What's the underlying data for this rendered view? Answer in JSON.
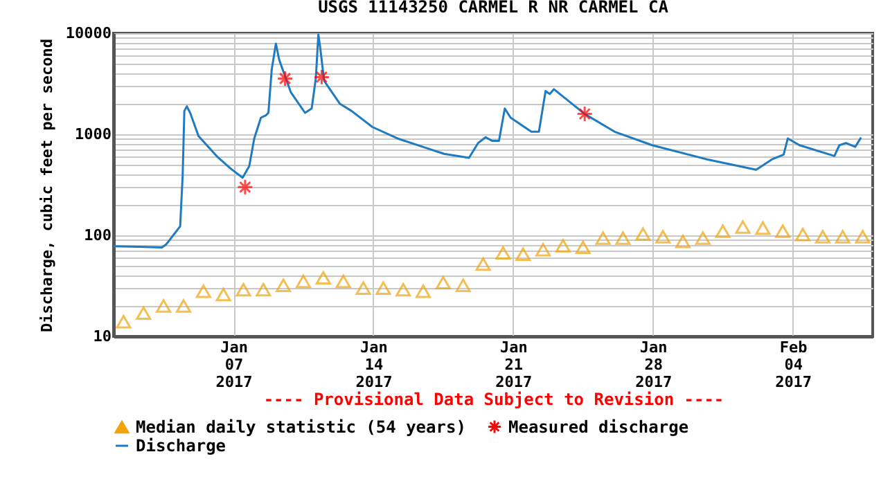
{
  "chart_data": {
    "type": "line",
    "title": "USGS 11143250 CARMEL R NR CARMEL CA",
    "ylabel": "Discharge, cubic feet per second",
    "annotations": [
      "---- Provisional Data Subject to Revision ----"
    ],
    "log": true,
    "grid": true,
    "legend": "bottom",
    "xlim": [
      "2017-01-01T00:00",
      "2017-02-08T00:00"
    ],
    "xticks": [
      {
        "value": "2017-01-07T00:00",
        "label": "Jan\n07\n2017"
      },
      {
        "value": "2017-01-14T00:00",
        "label": "Jan\n14\n2017"
      },
      {
        "value": "2017-01-21T00:00",
        "label": "Jan\n21\n2017"
      },
      {
        "value": "2017-01-28T00:00",
        "label": "Jan\n28\n2017"
      },
      {
        "value": "2017-02-04T00:00",
        "label": "Feb\n04\n2017"
      }
    ],
    "ylim": [
      10,
      10000
    ],
    "yticks": [
      10,
      {
        "value": 20,
        "label": null
      },
      {
        "value": 30,
        "label": null
      },
      {
        "value": 40,
        "label": null
      },
      {
        "value": 50,
        "label": null
      },
      {
        "value": 60,
        "label": null
      },
      {
        "value": 70,
        "label": null
      },
      {
        "value": 80,
        "label": null
      },
      {
        "value": 90,
        "label": null
      },
      100,
      {
        "value": 200,
        "label": null
      },
      {
        "value": 300,
        "label": null
      },
      {
        "value": 400,
        "label": null
      },
      {
        "value": 500,
        "label": null
      },
      {
        "value": 600,
        "label": null
      },
      {
        "value": 700,
        "label": null
      },
      {
        "value": 800,
        "label": null
      },
      {
        "value": 900,
        "label": null
      },
      1000,
      {
        "value": 2000,
        "label": null
      },
      {
        "value": 3000,
        "label": null
      },
      {
        "value": 4000,
        "label": null
      },
      {
        "value": 5000,
        "label": null
      },
      {
        "value": 6000,
        "label": null
      },
      {
        "value": 7000,
        "label": null
      },
      {
        "value": 8000,
        "label": null
      },
      {
        "value": 9000,
        "label": null
      },
      10000
    ],
    "series": [
      {
        "name": "Median daily statistic (54 years)",
        "type": "scatter",
        "marker": "triangle",
        "color": "#f0a30a",
        "x": [
          "2017-01-01T12:00",
          "2017-01-02T12:00",
          "2017-01-03T12:00",
          "2017-01-04T12:00",
          "2017-01-05T12:00",
          "2017-01-06T12:00",
          "2017-01-07T12:00",
          "2017-01-08T12:00",
          "2017-01-09T12:00",
          "2017-01-10T12:00",
          "2017-01-11T12:00",
          "2017-01-12T12:00",
          "2017-01-13T12:00",
          "2017-01-14T12:00",
          "2017-01-15T12:00",
          "2017-01-16T12:00",
          "2017-01-17T12:00",
          "2017-01-18T12:00",
          "2017-01-19T12:00",
          "2017-01-20T12:00",
          "2017-01-21T12:00",
          "2017-01-22T12:00",
          "2017-01-23T12:00",
          "2017-01-24T12:00",
          "2017-01-25T12:00",
          "2017-01-26T12:00",
          "2017-01-27T12:00",
          "2017-01-28T12:00",
          "2017-01-29T12:00",
          "2017-01-30T12:00",
          "2017-01-31T12:00",
          "2017-02-01T12:00",
          "2017-02-02T12:00",
          "2017-02-03T12:00",
          "2017-02-04T12:00",
          "2017-02-05T12:00",
          "2017-02-06T12:00",
          "2017-02-07T12:00"
        ],
        "values": [
          14,
          17,
          20,
          20,
          28,
          26,
          29,
          29,
          32,
          35,
          38,
          35,
          30,
          30,
          29,
          28,
          34,
          32,
          52,
          67,
          65,
          72,
          79,
          76,
          94,
          94,
          103,
          97,
          87,
          94,
          110,
          121,
          118,
          110,
          102,
          97,
          97,
          97
        ]
      },
      {
        "name": "Measured discharge",
        "type": "scatter",
        "marker": "cross",
        "color": "#ff0000",
        "x": [
          "2017-01-07T14:00",
          "2017-01-09T14:00",
          "2017-01-11T10:00",
          "2017-01-24T14:00"
        ],
        "values": [
          300,
          3560,
          3680,
          1590
        ]
      },
      {
        "name": "Discharge",
        "type": "line",
        "marker": "none",
        "color": "#1f7bc1",
        "x": [
          "2017-01-01T00:00",
          "2017-01-02T06:00",
          "2017-01-03T10:00",
          "2017-01-03T15:00",
          "2017-01-04T08:00",
          "2017-01-04T11:00",
          "2017-01-04T13:00",
          "2017-01-04T16:00",
          "2017-01-04T20:00",
          "2017-01-05T06:00",
          "2017-01-06T05:00",
          "2017-01-06T21:00",
          "2017-01-07T11:00",
          "2017-01-07T19:00",
          "2017-01-08T01:00",
          "2017-01-08T09:00",
          "2017-01-08T15:00",
          "2017-01-08T18:00",
          "2017-01-08T22:00",
          "2017-01-09T03:00",
          "2017-01-09T07:00",
          "2017-01-09T21:00",
          "2017-01-10T14:00",
          "2017-01-10T22:00",
          "2017-01-11T03:00",
          "2017-01-11T06:00",
          "2017-01-11T08:00",
          "2017-01-11T13:00",
          "2017-01-12T08:00",
          "2017-01-12T22:00",
          "2017-01-13T23:00",
          "2017-01-15T05:00",
          "2017-01-16T14:00",
          "2017-01-17T13:00",
          "2017-01-18T19:00",
          "2017-01-19T06:00",
          "2017-01-19T15:00",
          "2017-01-19T23:00",
          "2017-01-20T07:00",
          "2017-01-20T14:00",
          "2017-01-20T21:00",
          "2017-01-21T22:00",
          "2017-01-22T07:00",
          "2017-01-22T15:00",
          "2017-01-22T20:00",
          "2017-01-23T01:00",
          "2017-01-24T14:00",
          "2017-01-26T02:00",
          "2017-01-27T23:00",
          "2017-01-30T17:00",
          "2017-02-02T04:00",
          "2017-02-02T23:00",
          "2017-02-03T13:00",
          "2017-02-03T18:00",
          "2017-02-04T08:00",
          "2017-02-06T02:00",
          "2017-02-06T08:00",
          "2017-02-06T16:00",
          "2017-02-07T03:00",
          "2017-02-07T10:00"
        ],
        "values": [
          78,
          77,
          76,
          81,
          123,
          393,
          1700,
          1890,
          1630,
          960,
          595,
          455,
          372,
          484,
          910,
          1460,
          1540,
          1630,
          4390,
          7900,
          5450,
          2600,
          1630,
          1800,
          3600,
          9700,
          7440,
          3380,
          2000,
          1700,
          1180,
          910,
          740,
          640,
          585,
          820,
          935,
          860,
          860,
          1800,
          1460,
          1060,
          1060,
          2680,
          2510,
          2790,
          1590,
          1060,
          780,
          565,
          445,
          565,
          630,
          910,
          780,
          610,
          780,
          820,
          750,
          930
        ]
      }
    ]
  }
}
